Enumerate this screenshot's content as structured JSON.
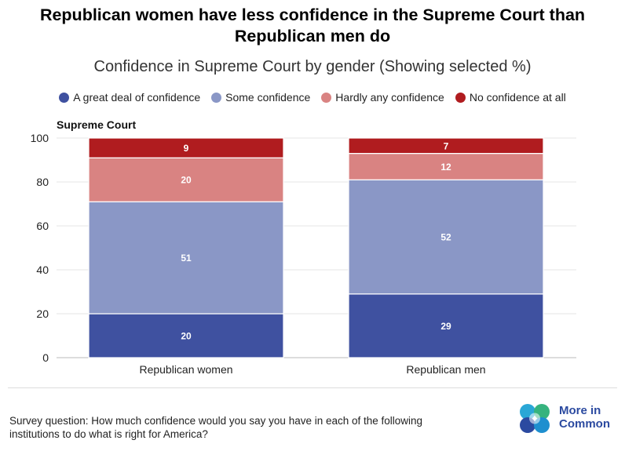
{
  "header": {
    "title_line1": "Republican women have less confidence in the Supreme Court than",
    "title_line2": "Republican men do",
    "subtitle": "Confidence in Supreme Court by gender (Showing selected %)"
  },
  "colors": {
    "great_deal": "#3f51a0",
    "some": "#8a97c6",
    "hardly": "#d98382",
    "none": "#b01c1f"
  },
  "chart_data": {
    "type": "bar",
    "stacked": true,
    "title": "Supreme Court",
    "categories": [
      "Republican women",
      "Republican men"
    ],
    "series": [
      {
        "name": "A great deal of confidence",
        "values": [
          20,
          29
        ],
        "color": "#3f51a0"
      },
      {
        "name": "Some confidence",
        "values": [
          51,
          52
        ],
        "color": "#8a97c6"
      },
      {
        "name": "Hardly any confidence",
        "values": [
          20,
          12
        ],
        "color": "#d98382"
      },
      {
        "name": "No confidence at all",
        "values": [
          9,
          7
        ],
        "color": "#b01c1f"
      }
    ],
    "ylim": [
      0,
      100
    ],
    "yticks": [
      0,
      20,
      40,
      60,
      80,
      100
    ],
    "legend_position": "top",
    "grid": true
  },
  "footer": {
    "footnote_line1": "Survey question: How much confidence would you say you have in each of the following",
    "footnote_line2": "institutions to do what is right for America?",
    "logo_line1": "More in",
    "logo_line2": "Common"
  }
}
